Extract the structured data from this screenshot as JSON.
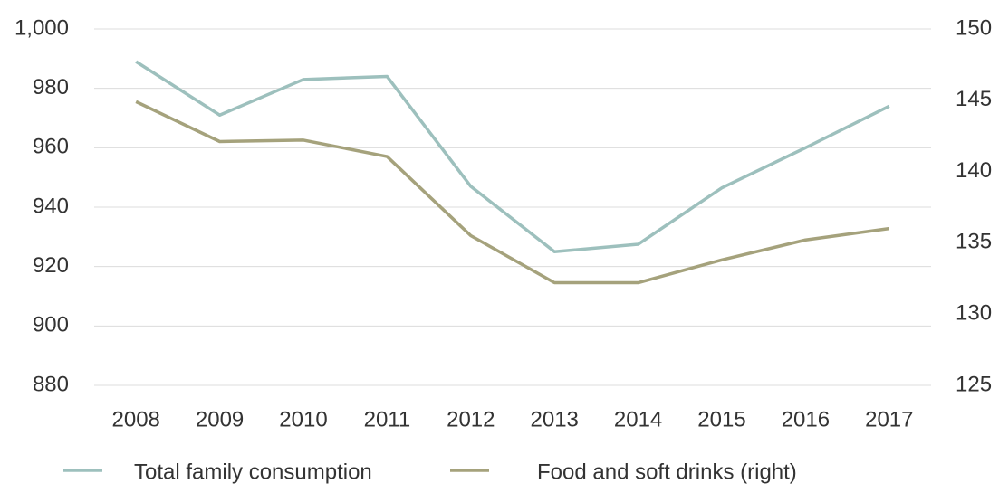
{
  "chart_data": {
    "type": "line",
    "categories": [
      "2008",
      "2009",
      "2010",
      "2011",
      "2012",
      "2013",
      "2014",
      "2015",
      "2016",
      "2017"
    ],
    "series": [
      {
        "name": "Total family consumption",
        "color": "#9dc0bd",
        "values": [
          989,
          971,
          983,
          984,
          947,
          925,
          927.5,
          946.5,
          960,
          974
        ]
      },
      {
        "name": "Food and soft drinks (right)",
        "color": "#a5a27c",
        "axis": "y2",
        "values": [
          144.9,
          142.1,
          142.2,
          141.05,
          135.5,
          132.2,
          132.2,
          133.8,
          135.2,
          136.0
        ]
      }
    ],
    "ylim": [
      880,
      1000
    ],
    "yticks": [
      880,
      900,
      920,
      940,
      960,
      980,
      {
        "value": 1000,
        "label": "1,000"
      }
    ],
    "y2lim": [
      125,
      150
    ],
    "y2ticks": [
      125,
      130,
      135,
      140,
      145,
      150
    ],
    "grid": true,
    "legend": "bottom"
  }
}
